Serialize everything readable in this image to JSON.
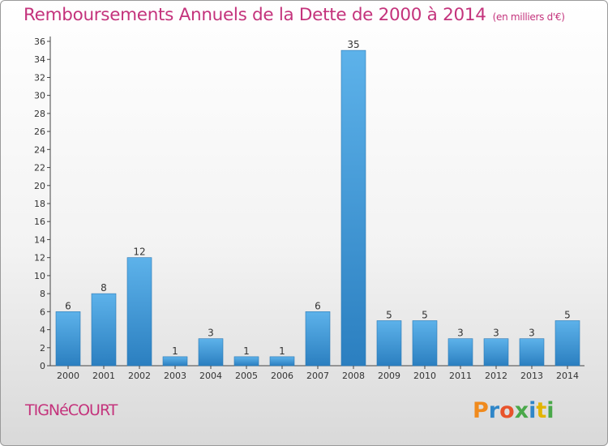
{
  "chart_data": {
    "type": "bar",
    "title": "Remboursements Annuels de la Dette de 2000 à 2014",
    "unit_label": "(en milliers d'€)",
    "categories": [
      "2000",
      "2001",
      "2002",
      "2003",
      "2004",
      "2005",
      "2006",
      "2007",
      "2008",
      "2009",
      "2010",
      "2011",
      "2012",
      "2013",
      "2014"
    ],
    "values": [
      6,
      8,
      12,
      1,
      3,
      1,
      1,
      6,
      35,
      5,
      5,
      3,
      3,
      3,
      5
    ],
    "ylim": [
      0,
      36
    ],
    "yticks": [
      0,
      2,
      4,
      6,
      8,
      10,
      12,
      14,
      16,
      18,
      20,
      22,
      24,
      26,
      28,
      30,
      32,
      34,
      36
    ],
    "grid": false,
    "bar_color": "#4aa3e0"
  },
  "footer": {
    "commune": "TIGNéCOURT",
    "logo_text": "Proxiti",
    "logo_colors": [
      "#f08a1d",
      "#2f86c8",
      "#e8532b",
      "#4aa84a",
      "#2f86c8",
      "#e2b400",
      "#4aa84a"
    ]
  },
  "colors": {
    "title": "#c4337c",
    "commune": "#c4337c"
  }
}
